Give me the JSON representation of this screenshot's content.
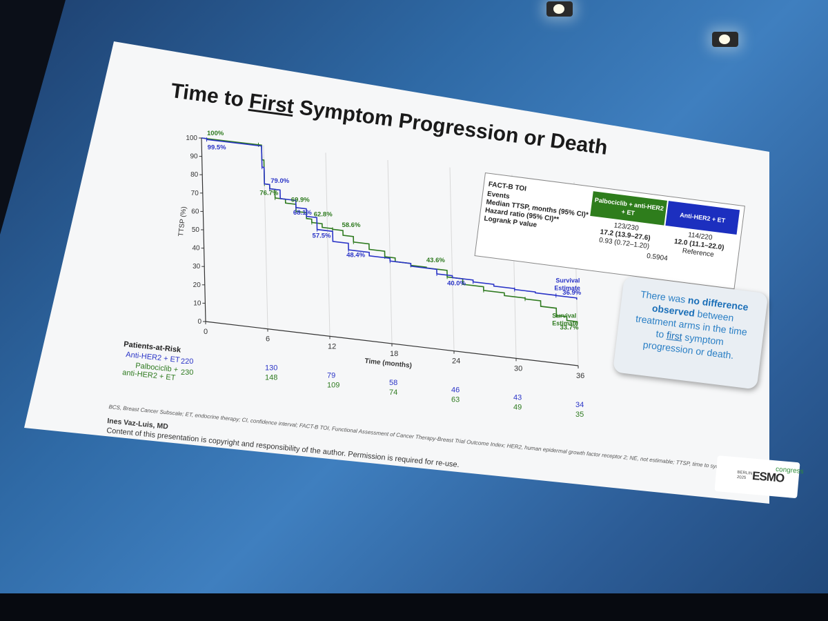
{
  "slide": {
    "title_pre": "Time to ",
    "title_emph": "First",
    "title_post": " Symptom Progression or Death",
    "footnote": "BCS, Breast Cancer Subscale; ET, endocrine therapy; CI, confidence interval; FACT-B TOI, Functional Assessment of Cancer Therapy-Breast Trial Outcome Index; HER2, human epidermal growth factor receptor 2; NE, not estimable; TTSP, time to symptom progression.",
    "author": "Ines Vaz-Luis, MD",
    "copyright": "Content of this presentation is copyright and responsibility of the author. Permission is required for re-use.",
    "logo": {
      "city": "BERLIN",
      "year": "2025",
      "mark": "ESMO",
      "suffix": "congress"
    }
  },
  "stats_table": {
    "label_title": "FACT-B TOI",
    "row_labels": [
      "Events",
      "Median TTSP, months (95% CI)*",
      "Hazard ratio (95% CI)**",
      "Logrank P value"
    ],
    "arm_green_header": "Palbociclib + anti-HER2 + ET",
    "arm_blue_header": "Anti-HER2 + ET",
    "green_values": [
      "123/230",
      "17.2 (13.9–27.6)",
      "0.93 (0.72–1.20)"
    ],
    "blue_values": [
      "114/220",
      "12.0 (11.1–22.0)",
      "Reference"
    ],
    "p_value": "0.5904"
  },
  "callout": {
    "t1": "There was ",
    "b1": "no difference observed",
    "t2": " between treatment arms in the time to ",
    "u1": "first",
    "t3": " symptom progression or death."
  },
  "risk_table": {
    "header": "Patients-at-Risk",
    "blue_label": "Anti-HER2 + ET",
    "green_label_1": "Palbociclib +",
    "green_label_2": "anti-HER2 + ET",
    "times": [
      0,
      6,
      12,
      18,
      24,
      30,
      36
    ],
    "blue_counts": [
      "220",
      "130",
      "79",
      "58",
      "46",
      "43",
      "34"
    ],
    "green_counts": [
      "230",
      "148",
      "109",
      "74",
      "63",
      "49",
      "35"
    ]
  },
  "colors": {
    "green": "#2e7a1f",
    "blue": "#2a34c7",
    "green_header": "#2e7d1c",
    "blue_header": "#1c2fbf"
  },
  "chart_data": {
    "type": "line",
    "ylabel": "TTSP (%)",
    "xlabel": "Time (months)",
    "xlim": [
      0,
      36
    ],
    "ylim": [
      0,
      100
    ],
    "x_ticks": [
      0,
      6,
      12,
      18,
      24,
      30,
      36
    ],
    "y_ticks": [
      0,
      10,
      20,
      30,
      40,
      50,
      60,
      70,
      80,
      90,
      100
    ],
    "series": [
      {
        "name": "Palbociclib + anti-HER2 + ET",
        "color": "#2e7a1f",
        "x": [
          0,
          5.5,
          5.8,
          6.0,
          6.5,
          7.0,
          8.0,
          9.0,
          10.0,
          10.5,
          11.5,
          12.5,
          13.5,
          14.5,
          16.0,
          17.5,
          18.5,
          20.0,
          21.5,
          23.5,
          25.0,
          27.0,
          29.0,
          31.0,
          32.5,
          34.0,
          35.0,
          36.0
        ],
        "y": [
          100,
          100,
          92,
          79.0,
          76.7,
          72.0,
          69.9,
          66.0,
          62.8,
          61.0,
          59.0,
          58.6,
          56.0,
          53.0,
          50.0,
          47.0,
          45.0,
          44.0,
          43.6,
          40.0,
          37.0,
          35.0,
          33.5,
          33.0,
          30.0,
          26.0,
          24.0,
          23.0
        ]
      },
      {
        "name": "Anti-HER2 + ET",
        "color": "#2a34c7",
        "x": [
          0,
          0.5,
          5.5,
          5.8,
          6.0,
          6.5,
          7.5,
          9.0,
          10.0,
          11.0,
          12.5,
          14.0,
          16.0,
          18.0,
          20.0,
          22.5,
          24.0,
          26.0,
          28.0,
          30.0,
          32.0,
          34.0,
          36.0
        ],
        "y": [
          100,
          99.5,
          99.5,
          88,
          79.0,
          76.7,
          72.0,
          68.1,
          64.0,
          57.5,
          52.0,
          48.4,
          46.5,
          45.0,
          43.5,
          41.0,
          40.0,
          39.0,
          38.0,
          37.5,
          37.0,
          36.9,
          36.0
        ]
      }
    ],
    "annotations": [
      {
        "text": "100%",
        "series": "Palbociclib + anti-HER2 + ET"
      },
      {
        "text": "99.5%",
        "series": "Anti-HER2 + ET"
      },
      {
        "text": "79.0%",
        "series": "Anti-HER2 + ET"
      },
      {
        "text": "76.7%",
        "series": "Palbociclib + anti-HER2 + ET"
      },
      {
        "text": "69.9%",
        "series": "Palbociclib + anti-HER2 + ET"
      },
      {
        "text": "68.1%",
        "series": "Anti-HER2 + ET"
      },
      {
        "text": "62.8%",
        "series": "Palbociclib + anti-HER2 + ET"
      },
      {
        "text": "57.5%",
        "series": "Anti-HER2 + ET"
      },
      {
        "text": "58.6%",
        "series": "Palbociclib + anti-HER2 + ET"
      },
      {
        "text": "48.4%",
        "series": "Anti-HER2 + ET"
      },
      {
        "text": "43.6%",
        "series": "Palbociclib + anti-HER2 + ET"
      },
      {
        "text": "40.0%",
        "series": "Anti-HER2 + ET"
      },
      {
        "text": "36.9%",
        "series": "Anti-HER2 + ET"
      },
      {
        "text": "33.7%",
        "series": "Palbociclib + anti-HER2 + ET"
      }
    ],
    "survival_estimate_label": "Survival Estimate",
    "survival_estimate_line1": "Survival",
    "survival_estimate_line2": "Estimate"
  }
}
